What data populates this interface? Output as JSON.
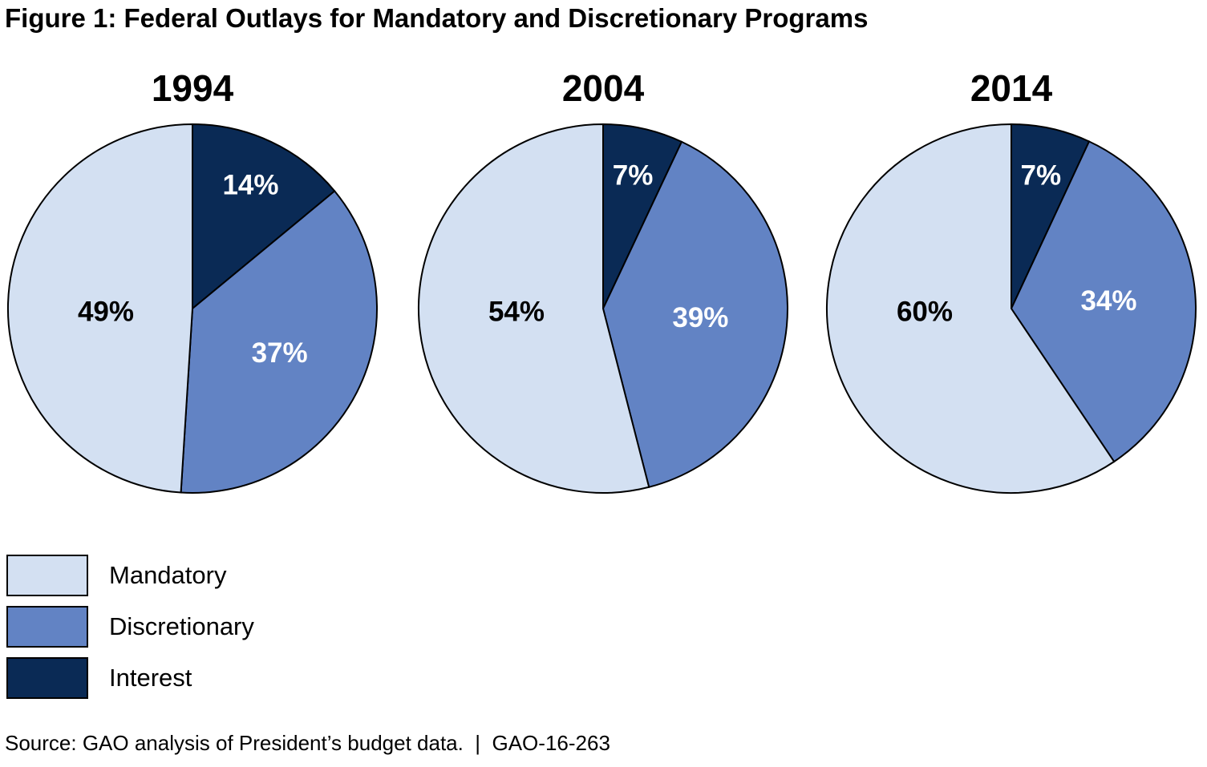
{
  "figure_title": "Figure 1: Federal Outlays for Mandatory and Discretionary Programs",
  "colors": {
    "mandatory": "#d3e0f2",
    "discretionary": "#6283c4",
    "interest": "#0a2a55",
    "outline": "#000000",
    "background": "#ffffff",
    "text": "#000000"
  },
  "legend": {
    "items": [
      {
        "label": "Mandatory",
        "color_key": "mandatory"
      },
      {
        "label": "Discretionary",
        "color_key": "discretionary"
      },
      {
        "label": "Interest",
        "color_key": "interest"
      }
    ]
  },
  "source_line": "Source: GAO analysis of President’s budget data.  |  GAO-16-263",
  "chart_data": [
    {
      "type": "pie",
      "title": "1994",
      "start_angle": "12-oclock",
      "direction": "clockwise",
      "slices": [
        {
          "key": "interest",
          "label": "Interest",
          "value": 14,
          "display": "14%",
          "label_color": "#ffffff"
        },
        {
          "key": "discretionary",
          "label": "Discretionary",
          "value": 37,
          "display": "37%",
          "label_color": "#ffffff"
        },
        {
          "key": "mandatory",
          "label": "Mandatory",
          "value": 49,
          "display": "49%",
          "label_color": "#000000"
        }
      ]
    },
    {
      "type": "pie",
      "title": "2004",
      "start_angle": "12-oclock",
      "direction": "clockwise",
      "slices": [
        {
          "key": "interest",
          "label": "Interest",
          "value": 7,
          "display": "7%",
          "label_color": "#ffffff"
        },
        {
          "key": "discretionary",
          "label": "Discretionary",
          "value": 39,
          "display": "39%",
          "label_color": "#ffffff"
        },
        {
          "key": "mandatory",
          "label": "Mandatory",
          "value": 54,
          "display": "54%",
          "label_color": "#000000"
        }
      ]
    },
    {
      "type": "pie",
      "title": "2014",
      "start_angle": "12-oclock",
      "direction": "clockwise",
      "slices": [
        {
          "key": "interest",
          "label": "Interest",
          "value": 7,
          "display": "7%",
          "label_color": "#ffffff"
        },
        {
          "key": "discretionary",
          "label": "Discretionary",
          "value": 34,
          "display": "34%",
          "label_color": "#ffffff"
        },
        {
          "key": "mandatory",
          "label": "Mandatory",
          "value": 60,
          "display": "60%",
          "label_color": "#000000"
        }
      ]
    }
  ]
}
